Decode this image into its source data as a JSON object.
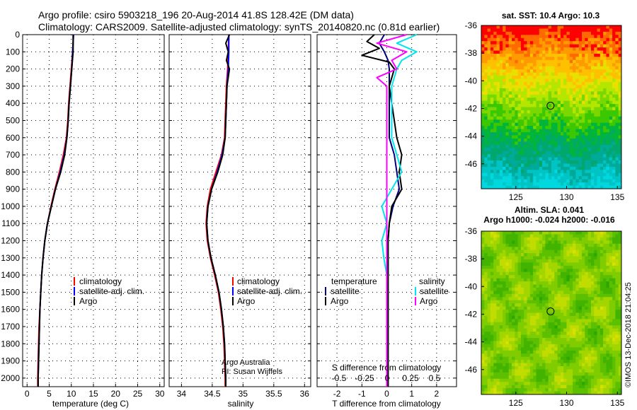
{
  "title": {
    "line1": "Argo profile: csiro 5903218_196 20-Aug-2014 41.8S 128.42E (DM data)",
    "line2": "Climatology: CARS2009. Satellite-adjusted climatology: synTS_20140820.nc (0.81d earlier)"
  },
  "credits": {
    "line1": "Argo Australia",
    "line2": "PI: Susan Wijffels"
  },
  "timestamp": "©IMOS 13-Dec-2018 21:04:25",
  "colors": {
    "climatology": "#ff0000",
    "satellite": "#0000ff",
    "argo": "#000000",
    "temp_sat": "#000080",
    "sal_sat": "#00e5ee",
    "sal_argo": "#ff00ff"
  },
  "chart_data": [
    {
      "type": "line",
      "name": "temperature-profile",
      "xlabel": "temperature (deg C)",
      "ylabel": "",
      "xlim": [
        -1,
        31
      ],
      "ylim": [
        2050,
        0
      ],
      "xticks": [
        0,
        5,
        10,
        15,
        20,
        25,
        30
      ],
      "yticks": [
        0,
        100,
        200,
        300,
        400,
        500,
        600,
        700,
        800,
        900,
        1000,
        1100,
        1200,
        1300,
        1400,
        1500,
        1600,
        1700,
        1800,
        1900,
        2000
      ],
      "legend": [
        "climatology",
        "satellite-adj. clim.",
        "Argo"
      ],
      "series": [
        {
          "name": "climatology",
          "color": "#ff0000",
          "depth": [
            0,
            50,
            100,
            200,
            300,
            400,
            500,
            600,
            700,
            800,
            900,
            1000,
            1100,
            1200,
            1300,
            1400,
            1500,
            1600,
            1700,
            1800,
            1900,
            2000,
            2050
          ],
          "values": [
            10.5,
            10.4,
            10.3,
            10.0,
            9.7,
            9.4,
            9.2,
            8.9,
            8.2,
            7.3,
            6.3,
            5.4,
            4.6,
            4.0,
            3.6,
            3.3,
            3.1,
            2.9,
            2.7,
            2.6,
            2.5,
            2.4,
            2.4
          ]
        },
        {
          "name": "satellite-adj. clim.",
          "color": "#0000ff",
          "depth": [
            0,
            50,
            100,
            200,
            300,
            400,
            500,
            600,
            700,
            800,
            900,
            1000,
            1100,
            1200,
            1300,
            1400,
            1500,
            1600,
            1700,
            1800,
            1900,
            2000,
            2050
          ],
          "values": [
            10.5,
            10.4,
            10.3,
            10.1,
            9.8,
            9.5,
            9.3,
            9.0,
            8.4,
            7.5,
            6.4,
            5.5,
            4.6,
            4.0,
            3.6,
            3.3,
            3.1,
            2.9,
            2.8,
            2.7,
            2.6,
            2.5,
            2.5
          ]
        },
        {
          "name": "Argo",
          "color": "#000000",
          "depth": [
            0,
            50,
            100,
            200,
            300,
            400,
            500,
            600,
            700,
            800,
            900,
            1000,
            1100,
            1200,
            1300,
            1400,
            1500,
            1600,
            1700,
            1800,
            1900,
            2000,
            2050
          ],
          "values": [
            10.4,
            10.4,
            10.4,
            10.1,
            9.8,
            9.5,
            9.3,
            9.0,
            8.5,
            7.6,
            6.4,
            5.5,
            4.6,
            4.0,
            3.6,
            3.3,
            3.1,
            2.9,
            2.8,
            2.7,
            2.6,
            2.5,
            2.5
          ]
        }
      ]
    },
    {
      "type": "line",
      "name": "salinity-profile",
      "xlabel": "salinity",
      "ylabel": "",
      "xlim": [
        33.8,
        36.1
      ],
      "ylim": [
        2050,
        0
      ],
      "xticks": [
        34,
        34.5,
        35,
        35.5,
        36
      ],
      "legend": [
        "climatology",
        "satellite-adj. clim.",
        "Argo"
      ],
      "series": [
        {
          "name": "climatology",
          "color": "#ff0000",
          "depth": [
            0,
            100,
            200,
            300,
            400,
            500,
            600,
            700,
            800,
            900,
            1000,
            1100,
            1200,
            1300,
            1400,
            1500,
            1600,
            1700,
            1800,
            1900,
            2000,
            2050
          ],
          "values": [
            34.77,
            34.76,
            34.75,
            34.73,
            34.72,
            34.71,
            34.7,
            34.65,
            34.56,
            34.47,
            34.42,
            34.4,
            34.42,
            34.47,
            34.54,
            34.6,
            34.64,
            34.67,
            34.69,
            34.7,
            34.71,
            34.71
          ]
        },
        {
          "name": "satellite-adj. clim.",
          "color": "#0000ff",
          "depth": [
            0,
            100,
            200,
            300,
            400,
            500,
            600,
            700,
            800,
            900,
            1000,
            1100,
            1200,
            1300,
            1400,
            1500,
            1600,
            1700,
            1800,
            1900,
            2000,
            2050
          ],
          "values": [
            34.77,
            34.77,
            34.76,
            34.74,
            34.73,
            34.72,
            34.71,
            34.66,
            34.58,
            34.49,
            34.43,
            34.41,
            34.43,
            34.48,
            34.55,
            34.61,
            34.65,
            34.68,
            34.7,
            34.71,
            34.72,
            34.72
          ]
        },
        {
          "name": "Argo",
          "color": "#000000",
          "depth": [
            0,
            50,
            100,
            150,
            200,
            300,
            400,
            500,
            600,
            700,
            800,
            900,
            1000,
            1100,
            1200,
            1300,
            1400,
            1500,
            1600,
            1700,
            1800,
            1900,
            2000,
            2050
          ],
          "values": [
            34.78,
            34.72,
            34.76,
            34.73,
            34.78,
            34.74,
            34.73,
            34.72,
            34.71,
            34.67,
            34.59,
            34.49,
            34.43,
            34.41,
            34.43,
            34.48,
            34.55,
            34.61,
            34.65,
            34.68,
            34.7,
            34.71,
            34.72,
            34.72
          ]
        }
      ]
    },
    {
      "type": "line",
      "name": "difference-profile",
      "xlabel": "T difference from climatology",
      "secondary_xlabel": "S difference from climatology",
      "xlim": [
        -2.8,
        2.8
      ],
      "ylim": [
        2050,
        0
      ],
      "xticks": [
        -2,
        -1,
        0,
        1,
        2
      ],
      "secondary_xticks": [
        "-0.5",
        "-0.25",
        "0",
        "0.25",
        "0.5"
      ],
      "legend_headers": [
        "temperature",
        "salinity"
      ],
      "legend": [
        "satellite",
        "Argo",
        "satellite",
        "Argo"
      ],
      "series": [
        {
          "name": "temperature satellite",
          "color": "#000080",
          "depth": [
            0,
            50,
            100,
            150,
            200,
            300,
            400,
            500,
            600,
            700,
            800,
            900,
            1000,
            1100,
            1200,
            1300,
            1400,
            1500,
            1600,
            1700,
            1800,
            1900,
            2000,
            2050
          ],
          "values": [
            -0.1,
            -0.3,
            -0.1,
            0.05,
            0.1,
            0.1,
            0.1,
            0.1,
            0.1,
            0.3,
            0.4,
            0.5,
            0.25,
            0.1,
            0.05,
            0.05,
            0.05,
            0.05,
            0.05,
            0.05,
            0.05,
            0.05,
            0.05,
            0.05
          ]
        },
        {
          "name": "temperature Argo",
          "color": "#000000",
          "depth": [
            0,
            40,
            80,
            120,
            160,
            200,
            300,
            400,
            500,
            600,
            700,
            800,
            900,
            1000,
            1100,
            1200,
            1300,
            1400,
            1500,
            1600,
            1700,
            1800,
            1900,
            2000,
            2050
          ],
          "values": [
            -0.5,
            -0.8,
            -0.3,
            -1.0,
            0.1,
            0.3,
            0.1,
            0.2,
            0.3,
            0.4,
            0.6,
            0.5,
            0.6,
            0.2,
            0.1,
            0.05,
            0.05,
            0.05,
            0.05,
            0.05,
            0.05,
            0.05,
            0.05,
            0.05,
            0.05
          ]
        },
        {
          "name": "salinity satellite",
          "color": "#00e5ee",
          "depth": [
            0,
            50,
            100,
            150,
            200,
            300,
            400,
            500,
            600,
            700,
            800,
            900,
            1000,
            1100,
            1200,
            1300,
            1400,
            1500,
            1600,
            1700,
            1800,
            1900,
            2000,
            2050
          ],
          "values": [
            0.3,
            0.1,
            0.3,
            0.15,
            0.1,
            0.05,
            0.05,
            0.05,
            0.05,
            0.1,
            0.15,
            0.05,
            -0.05,
            0.0,
            -0.05,
            -0.03,
            0.0,
            0.0,
            0.0,
            0.0,
            0.0,
            0.0,
            0.0,
            0.0
          ]
        },
        {
          "name": "salinity Argo",
          "color": "#ff00ff",
          "depth": [
            0,
            50,
            100,
            150,
            200,
            250,
            300,
            400,
            500,
            600,
            700,
            800,
            900,
            1000,
            1100,
            1200,
            1300,
            1400,
            1500,
            1600,
            1700,
            1800,
            1900,
            2000,
            2050
          ],
          "values": [
            0.2,
            -0.1,
            0.2,
            0.05,
            0.1,
            -0.1,
            0.0,
            0.0,
            0.0,
            0.0,
            0.0,
            0.0,
            0.0,
            0.0,
            0.0,
            0.0,
            0.0,
            0.0,
            0.0,
            0.0,
            0.0,
            0.0,
            0.0,
            0.0,
            0.0
          ]
        }
      ]
    },
    {
      "type": "heatmap",
      "name": "sst-map",
      "title": "sat. SST: 10.4 Argo: 10.3",
      "xlim": [
        121.6,
        135.4
      ],
      "ylim": [
        -47.8,
        -36
      ],
      "xticks": [
        125,
        130,
        135
      ],
      "yticks": [
        -36,
        -38,
        -40,
        -42,
        -44,
        -46
      ],
      "marker": {
        "lon": 128.42,
        "lat": -41.8
      }
    },
    {
      "type": "heatmap",
      "name": "sla-map",
      "title_line1": "Altim. SLA: 0.041",
      "title_line2": "Argo h1000: -0.024 h2000: -0.016",
      "xlim": [
        121.6,
        135.4
      ],
      "ylim": [
        -47.8,
        -36
      ],
      "xticks": [
        125,
        130,
        135
      ],
      "yticks": [
        -36,
        -38,
        -40,
        -42,
        -44,
        -46
      ],
      "marker": {
        "lon": 128.42,
        "lat": -41.8
      }
    }
  ]
}
